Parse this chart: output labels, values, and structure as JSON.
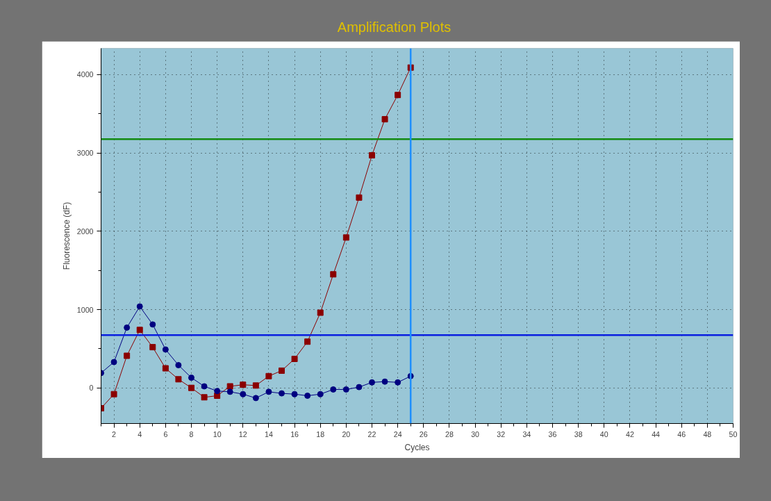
{
  "chart_data": {
    "type": "line",
    "title": "Amplification Plots",
    "xlabel": "Cycles",
    "ylabel": "Fluorescence (dF)",
    "x": [
      1,
      2,
      3,
      4,
      5,
      6,
      7,
      8,
      9,
      10,
      11,
      12,
      13,
      14,
      15,
      16,
      17,
      18,
      19,
      20,
      21,
      22,
      23,
      24,
      25
    ],
    "series": [
      {
        "color": "#8b0000",
        "marker": "square",
        "values": [
          -260,
          -80,
          410,
          740,
          520,
          250,
          110,
          0,
          -120,
          -100,
          20,
          40,
          30,
          150,
          220,
          370,
          590,
          960,
          1450,
          1920,
          2430,
          2970,
          3430,
          3740,
          4090
        ]
      },
      {
        "color": "#000080",
        "marker": "circle",
        "values": [
          190,
          330,
          770,
          1040,
          810,
          490,
          290,
          130,
          20,
          -40,
          -50,
          -80,
          -130,
          -50,
          -70,
          -80,
          -100,
          -80,
          -20,
          -20,
          10,
          70,
          80,
          70,
          150
        ]
      }
    ],
    "xlim": [
      1,
      50
    ],
    "ylim": [
      -455,
      4336
    ],
    "xticks": [
      2,
      4,
      6,
      8,
      10,
      12,
      14,
      16,
      18,
      20,
      22,
      24,
      26,
      28,
      30,
      32,
      34,
      36,
      38,
      40,
      42,
      44,
      46,
      48,
      50
    ],
    "yticks": [
      0,
      1000,
      2000,
      3000,
      4000
    ],
    "ref_lines": [
      {
        "axis": "y",
        "value": 3175,
        "color": "#138a13"
      },
      {
        "axis": "y",
        "value": 673,
        "color": "#0a1fe0"
      },
      {
        "axis": "x",
        "value": 25,
        "color": "#1e8fff"
      }
    ],
    "grid": true,
    "line_style": "solid"
  }
}
